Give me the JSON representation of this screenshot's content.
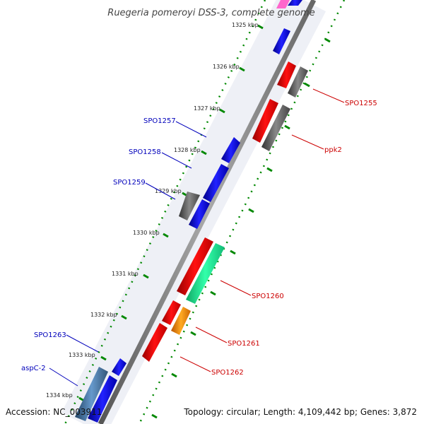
{
  "title": "Ruegeria pomeroyi DSS-3, complete genome",
  "accession": "Accession: NC_003911",
  "topology": "Topology: circular; Length: 4,109,442 bp; Genes: 3,872",
  "ticks": [
    "1325 kbp",
    "1326 kbp",
    "1327 kbp",
    "1328 kbp",
    "1329 kbp",
    "1330 kbp",
    "1331 kbp",
    "1332 kbp",
    "1333 kbp",
    "1334 kbp"
  ],
  "labels": {
    "spo1255": "SPO1255",
    "ppk2": "ppk2",
    "spo1257": "SPO1257",
    "spo1258": "SPO1258",
    "spo1259": "SPO1259",
    "spo1260": "SPO1260",
    "spo1261": "SPO1261",
    "spo1262": "SPO1262",
    "spo1263": "SPO1263",
    "aspc2": "aspC-2"
  },
  "colors": {
    "forward_gene": "#0000ee",
    "reverse_gene": "#ee0000",
    "hypothetical": "#666666",
    "rna": "#22ee99",
    "orange": "#ff8800",
    "steel": "#4477aa",
    "pink": "#ff66cc",
    "backbone": "#888888",
    "tick_dots": "#008800",
    "label_blue": "#0000bb",
    "label_red": "#cc0000"
  }
}
